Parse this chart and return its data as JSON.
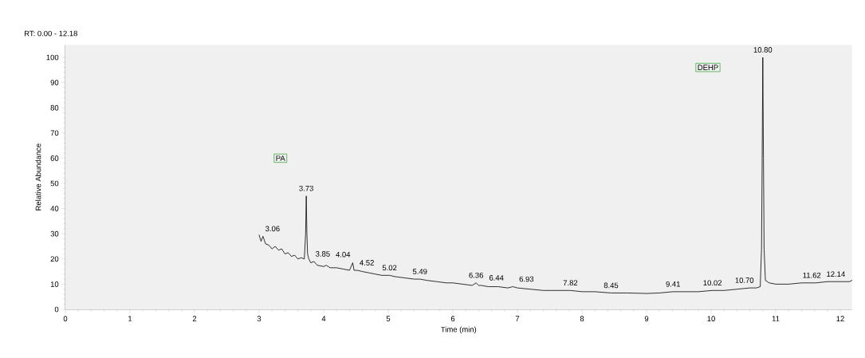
{
  "chart_data": {
    "type": "line",
    "title": "RT: 0.00 - 12.18",
    "xlabel": "Time (min)",
    "ylabel": "Relative Abundance",
    "xlim": [
      0,
      12.18
    ],
    "xticks": [
      0,
      1,
      2,
      3,
      4,
      5,
      6,
      7,
      8,
      9,
      10,
      11,
      12
    ],
    "ylim": [
      0,
      105
    ],
    "yticks": [
      0,
      10,
      20,
      30,
      40,
      50,
      60,
      70,
      80,
      90,
      100
    ],
    "grid": false,
    "legend": false,
    "marker": "none",
    "line_style": "solid",
    "series": [
      {
        "color": "#000000",
        "x": [
          3.0,
          3.03,
          3.06,
          3.1,
          3.15,
          3.2,
          3.25,
          3.3,
          3.35,
          3.4,
          3.45,
          3.5,
          3.55,
          3.6,
          3.65,
          3.7,
          3.72,
          3.73,
          3.74,
          3.75,
          3.77,
          3.8,
          3.85,
          3.9,
          4.0,
          4.04,
          4.1,
          4.2,
          4.3,
          4.4,
          4.45,
          4.47,
          4.52,
          4.6,
          4.7,
          4.8,
          4.9,
          5.02,
          5.1,
          5.25,
          5.4,
          5.49,
          5.6,
          5.75,
          5.9,
          6.0,
          6.15,
          6.3,
          6.36,
          6.4,
          6.44,
          6.55,
          6.7,
          6.85,
          6.93,
          7.0,
          7.2,
          7.4,
          7.6,
          7.82,
          8.0,
          8.2,
          8.45,
          8.7,
          9.0,
          9.2,
          9.41,
          9.6,
          9.8,
          10.02,
          10.2,
          10.4,
          10.6,
          10.7,
          10.76,
          10.78,
          10.79,
          10.8,
          10.81,
          10.82,
          10.84,
          10.9,
          11.0,
          11.2,
          11.4,
          11.62,
          11.8,
          12.0,
          12.14,
          12.18
        ],
        "values": [
          29.5,
          27,
          29,
          26,
          25.5,
          24,
          25,
          23.5,
          24,
          22,
          22.5,
          21,
          21.5,
          20,
          20.5,
          20,
          30,
          45,
          30,
          22,
          20,
          18.5,
          19,
          17.5,
          17,
          17.5,
          16.5,
          16.5,
          16,
          15.5,
          18.5,
          15.5,
          15.5,
          15,
          14.5,
          14,
          13.5,
          13.5,
          13,
          12.5,
          12,
          12,
          11.5,
          11,
          10.5,
          10.5,
          10,
          9.5,
          10.5,
          9.5,
          9.5,
          9,
          9,
          8.5,
          9,
          8.5,
          8,
          7.5,
          7.5,
          7.5,
          7,
          7,
          6.5,
          6.5,
          6.3,
          6.5,
          7,
          7,
          7,
          7.5,
          7.5,
          8,
          8.5,
          8.5,
          9,
          24,
          60,
          100,
          60,
          24,
          11.5,
          10.5,
          10,
          10,
          10.5,
          10.5,
          11,
          11,
          11,
          11.5
        ]
      }
    ],
    "annotations": [
      {
        "text": "3.06",
        "x": 3.06,
        "y": 29
      },
      {
        "text": "3.73",
        "x": 3.73,
        "y": 45
      },
      {
        "text": "3.85",
        "x": 3.85,
        "y": 19
      },
      {
        "text": "4.04",
        "x": 4.04,
        "y": 17.5
      },
      {
        "text": "4.52",
        "x": 4.52,
        "y": 15.5
      },
      {
        "text": "5.02",
        "x": 5.02,
        "y": 13.5
      },
      {
        "text": "5.49",
        "x": 5.49,
        "y": 12
      },
      {
        "text": "6.36",
        "x": 6.36,
        "y": 10.5
      },
      {
        "text": "6.44",
        "x": 6.44,
        "y": 9.5
      },
      {
        "text": "6.93",
        "x": 6.93,
        "y": 9
      },
      {
        "text": "7.82",
        "x": 7.82,
        "y": 7.5
      },
      {
        "text": "8.45",
        "x": 8.45,
        "y": 6.5
      },
      {
        "text": "9.41",
        "x": 9.41,
        "y": 7
      },
      {
        "text": "10.02",
        "x": 10.02,
        "y": 7.5
      },
      {
        "text": "10.70",
        "x": 10.7,
        "y": 8.5
      },
      {
        "text": "10.80",
        "x": 10.8,
        "y": 100
      },
      {
        "text": "11.62",
        "x": 11.62,
        "y": 10.5
      },
      {
        "text": "12.14",
        "x": 12.14,
        "y": 11
      },
      {
        "text": "PA",
        "x": 3.33,
        "y": 60
      },
      {
        "text": "DEHP",
        "x": 9.95,
        "y": 96
      }
    ]
  }
}
